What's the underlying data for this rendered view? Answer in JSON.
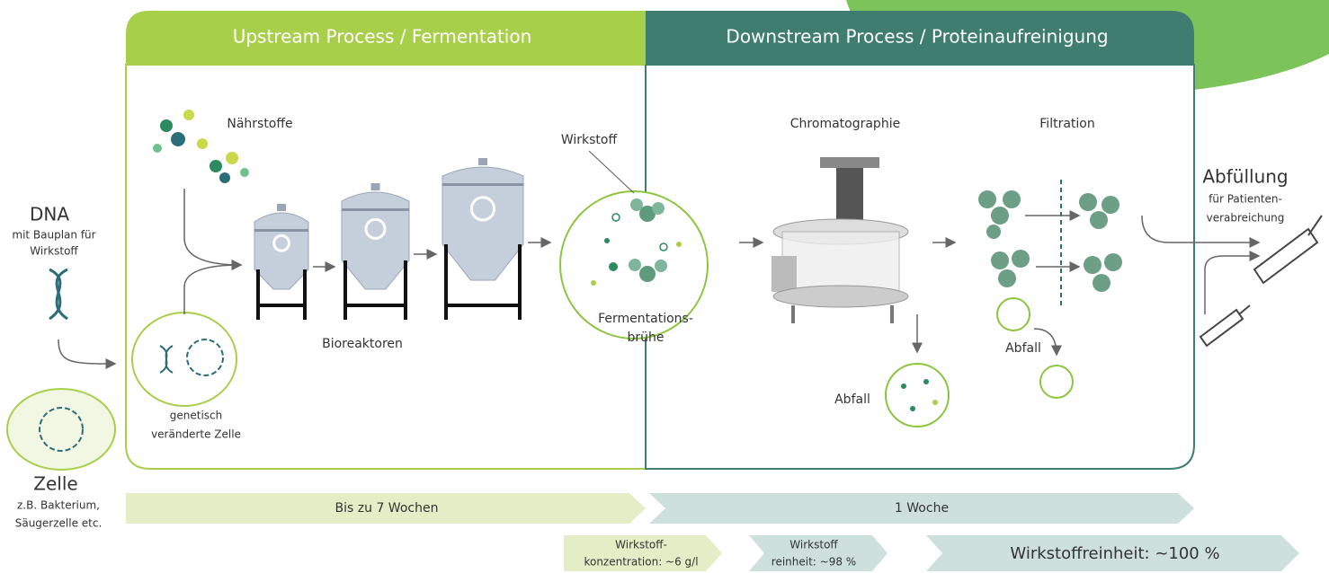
{
  "panels": {
    "upstream": {
      "title": "Upstream Process / Fermentation"
    },
    "downstream": {
      "title": "Downstream Process / Proteinaufreinigung"
    }
  },
  "start": {
    "dna": {
      "title": "DNA",
      "lines": [
        "mit Bauplan für",
        "Wirkstoff"
      ]
    },
    "cell": {
      "title": "Zelle",
      "lines": [
        "z.B. Bakterium,",
        "Säugerzelle etc."
      ]
    }
  },
  "upstream_labels": {
    "nutrients": "Nährstoffe",
    "bioreactors": "Bioreaktoren",
    "modified_cell": [
      "genetisch",
      "veränderte Zelle"
    ],
    "active_ingredient": "Wirkstoff",
    "broth": [
      "Fermentations-",
      "brühe"
    ]
  },
  "downstream_labels": {
    "chromatography": "Chromatographie",
    "filtration": "Filtration",
    "waste_chromatography": "Abfall",
    "waste_filtration": "Abfall"
  },
  "end": {
    "title": "Abfüllung",
    "lines": [
      "für Patienten-",
      "verabreichung"
    ]
  },
  "timeline": {
    "upstream": "Bis zu 7 Wochen",
    "downstream": "1 Woche"
  },
  "metrics": {
    "concentration": [
      "Wirkstoff-",
      "konzentration: ~6 g/l"
    ],
    "purity_chromatography": [
      "Wirkstoff",
      "reinheit: ~98 %"
    ],
    "purity_final": "Wirkstoffreinheit: ~100 %"
  }
}
